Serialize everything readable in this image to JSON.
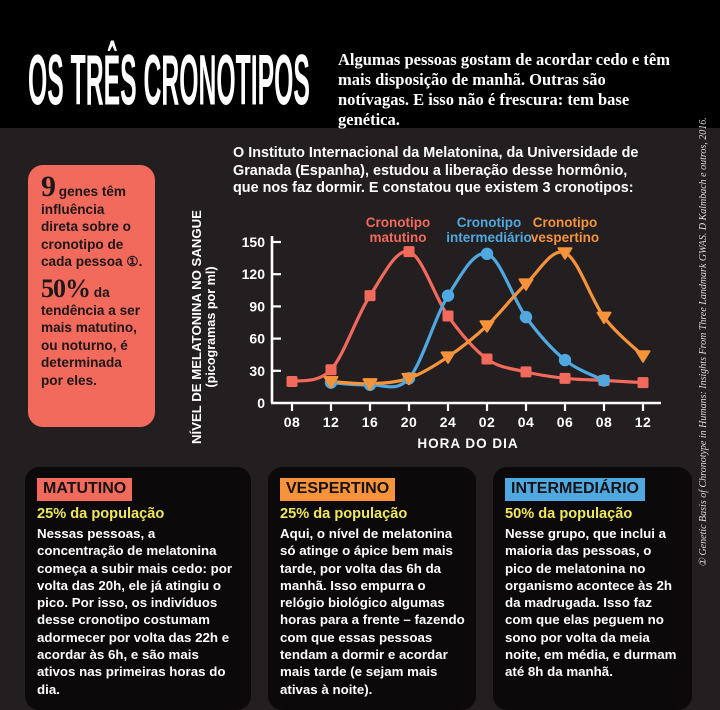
{
  "palette": {
    "background": "#231e20",
    "topbar": "#000000",
    "salmon": "#f26a5c",
    "blue": "#4fa8e0",
    "orange": "#f6933b",
    "yellow": "#efe75a",
    "card_bg": "#0c090b",
    "text_light": "#ffffff",
    "text_dark": "#1d1719"
  },
  "header": {
    "title": "OS TRÊS CRONOTIPOS",
    "intro": "Algumas pessoas gostam de acordar cedo e têm mais disposição de manhã. Outras são notívagas. E isso não é frescura: tem base genética."
  },
  "gene_box": {
    "num1": "9",
    "text1": " genes têm influência direta sobre o cronotipo de cada pessoa ①.",
    "num2": "50%",
    "text2": " da tendência a ser mais matutino, ou noturno, é determinada por eles."
  },
  "study_text": "O Instituto Internacional da Melatonina, da Universidade de Granada (Espanha), estudou a liberação desse hormônio, que nos faz dormir. E constatou que existem 3 cronotipos:",
  "chart_data": {
    "type": "line",
    "title": "",
    "xlabel": "HORA DO DIA",
    "ylabel": "NÍVEL DE MELATONINA NO SANGUE",
    "ylabel_sub": "(picogramas por ml)",
    "categories": [
      "08",
      "12",
      "16",
      "20",
      "24",
      "02",
      "04",
      "06",
      "08",
      "12"
    ],
    "ylim": [
      0,
      150
    ],
    "yticks": [
      0,
      30,
      60,
      90,
      120,
      150
    ],
    "grid": false,
    "legend_position": "top",
    "series": [
      {
        "name": "Cronotipo matutino",
        "color": "#f26a5c",
        "marker": "square",
        "start_index": 0,
        "values": [
          20,
          31,
          100,
          141,
          81,
          41,
          29,
          23,
          21,
          19
        ]
      },
      {
        "name": "Cronotipo intermediário",
        "color": "#4fa8e0",
        "marker": "circle",
        "start_index": 1,
        "values": [
          19,
          17,
          23,
          100,
          139,
          80,
          40,
          21
        ]
      },
      {
        "name": "Cronotipo vespertino",
        "color": "#f6933b",
        "marker": "triangle-down",
        "start_index": 1,
        "values": [
          20,
          18,
          23,
          43,
          72,
          111,
          140,
          80,
          44
        ]
      }
    ]
  },
  "cards": [
    {
      "label": "MATUTINO",
      "color": "#f26a5c",
      "pct": "25% da população",
      "body": "Nessas pessoas, a concentração de melatonina começa a subir mais cedo: por volta das 20h, ele já atingiu o pico. Por isso, os indivíduos desse cronotipo costumam adormecer por volta das 22h e acordar às 6h, e são mais ativos nas primeiras horas do dia."
    },
    {
      "label": "VESPERTINO",
      "color": "#f6933b",
      "pct": "25% da população",
      "body": "Aqui, o nível de melatonina só atinge o ápice bem mais tarde, por volta das 6h da manhã. Isso empurra o relógio biológico algumas horas para a frente – fazendo com que essas pessoas tendam a dormir e acordar mais tarde (e sejam mais ativas à noite)."
    },
    {
      "label": "INTERMEDIÁRIO",
      "color": "#4fa8e0",
      "pct": "50% da população",
      "body": "Nesse grupo, que inclui a maioria das pessoas, o pico de melatonina no organismo acontece às 2h da madrugada. Isso faz com que elas peguem no sono por volta da meia noite, em média, e durmam até 8h da manhã."
    }
  ],
  "credit": "① Genetic Basis of Chronotype in Humans: Insights From Three Landmark GWAS. D Kalmbach e outros, 2016."
}
